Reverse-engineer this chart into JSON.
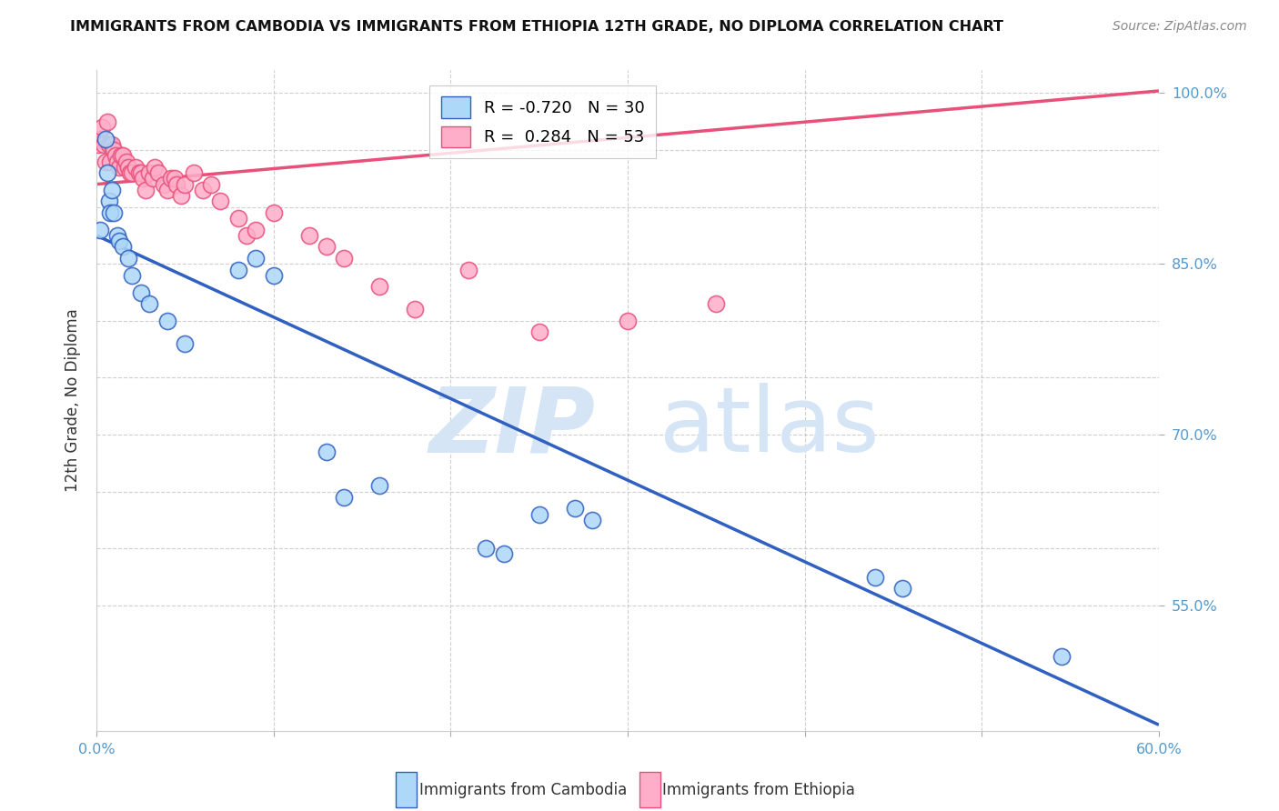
{
  "title": "IMMIGRANTS FROM CAMBODIA VS IMMIGRANTS FROM ETHIOPIA 12TH GRADE, NO DIPLOMA CORRELATION CHART",
  "source": "Source: ZipAtlas.com",
  "xlabel_cambodia": "Immigrants from Cambodia",
  "xlabel_ethiopia": "Immigrants from Ethiopia",
  "ylabel": "12th Grade, No Diploma",
  "watermark_zip": "ZIP",
  "watermark_atlas": "atlas",
  "xmin": 0.0,
  "xmax": 0.6,
  "ymin": 0.44,
  "ymax": 1.02,
  "yticks": [
    0.55,
    0.7,
    0.85,
    1.0
  ],
  "ytick_labels": [
    "55.0%",
    "70.0%",
    "85.0%",
    "100.0%"
  ],
  "yticks_minor": [
    0.55,
    0.6,
    0.65,
    0.7,
    0.75,
    0.8,
    0.85,
    0.9,
    0.95,
    1.0
  ],
  "xticks": [
    0.0,
    0.1,
    0.2,
    0.3,
    0.4,
    0.5,
    0.6
  ],
  "xtick_labels": [
    "0.0%",
    "",
    "",
    "",
    "",
    "",
    "60.0%"
  ],
  "R_cambodia": -0.72,
  "N_cambodia": 30,
  "R_ethiopia": 0.284,
  "N_ethiopia": 53,
  "color_cambodia": "#ADD8F7",
  "color_ethiopia": "#FFAEC9",
  "line_color_cambodia": "#3060C0",
  "line_color_ethiopia": "#E8507A",
  "background_color": "#FFFFFF",
  "grid_color": "#BBBBBB",
  "cambodia_x": [
    0.002,
    0.005,
    0.006,
    0.007,
    0.008,
    0.009,
    0.01,
    0.012,
    0.013,
    0.015,
    0.018,
    0.02,
    0.025,
    0.03,
    0.04,
    0.05,
    0.08,
    0.09,
    0.1,
    0.13,
    0.14,
    0.16,
    0.22,
    0.23,
    0.25,
    0.27,
    0.28,
    0.44,
    0.455,
    0.545
  ],
  "cambodia_y": [
    0.88,
    0.96,
    0.93,
    0.905,
    0.895,
    0.915,
    0.895,
    0.875,
    0.87,
    0.865,
    0.855,
    0.84,
    0.825,
    0.815,
    0.8,
    0.78,
    0.845,
    0.855,
    0.84,
    0.685,
    0.645,
    0.655,
    0.6,
    0.595,
    0.63,
    0.635,
    0.625,
    0.575,
    0.565,
    0.505
  ],
  "ethiopia_x": [
    0.001,
    0.002,
    0.003,
    0.004,
    0.005,
    0.006,
    0.007,
    0.008,
    0.009,
    0.01,
    0.011,
    0.012,
    0.013,
    0.014,
    0.015,
    0.016,
    0.017,
    0.018,
    0.019,
    0.02,
    0.022,
    0.024,
    0.025,
    0.026,
    0.028,
    0.03,
    0.032,
    0.033,
    0.035,
    0.038,
    0.04,
    0.042,
    0.044,
    0.045,
    0.048,
    0.05,
    0.055,
    0.06,
    0.065,
    0.07,
    0.08,
    0.085,
    0.09,
    0.1,
    0.12,
    0.13,
    0.14,
    0.16,
    0.18,
    0.21,
    0.25,
    0.3,
    0.35
  ],
  "ethiopia_y": [
    0.955,
    0.96,
    0.97,
    0.955,
    0.94,
    0.975,
    0.955,
    0.94,
    0.955,
    0.95,
    0.945,
    0.94,
    0.935,
    0.945,
    0.945,
    0.935,
    0.94,
    0.935,
    0.93,
    0.93,
    0.935,
    0.93,
    0.93,
    0.925,
    0.915,
    0.93,
    0.925,
    0.935,
    0.93,
    0.92,
    0.915,
    0.925,
    0.925,
    0.92,
    0.91,
    0.92,
    0.93,
    0.915,
    0.92,
    0.905,
    0.89,
    0.875,
    0.88,
    0.895,
    0.875,
    0.865,
    0.855,
    0.83,
    0.81,
    0.845,
    0.79,
    0.8,
    0.815
  ]
}
